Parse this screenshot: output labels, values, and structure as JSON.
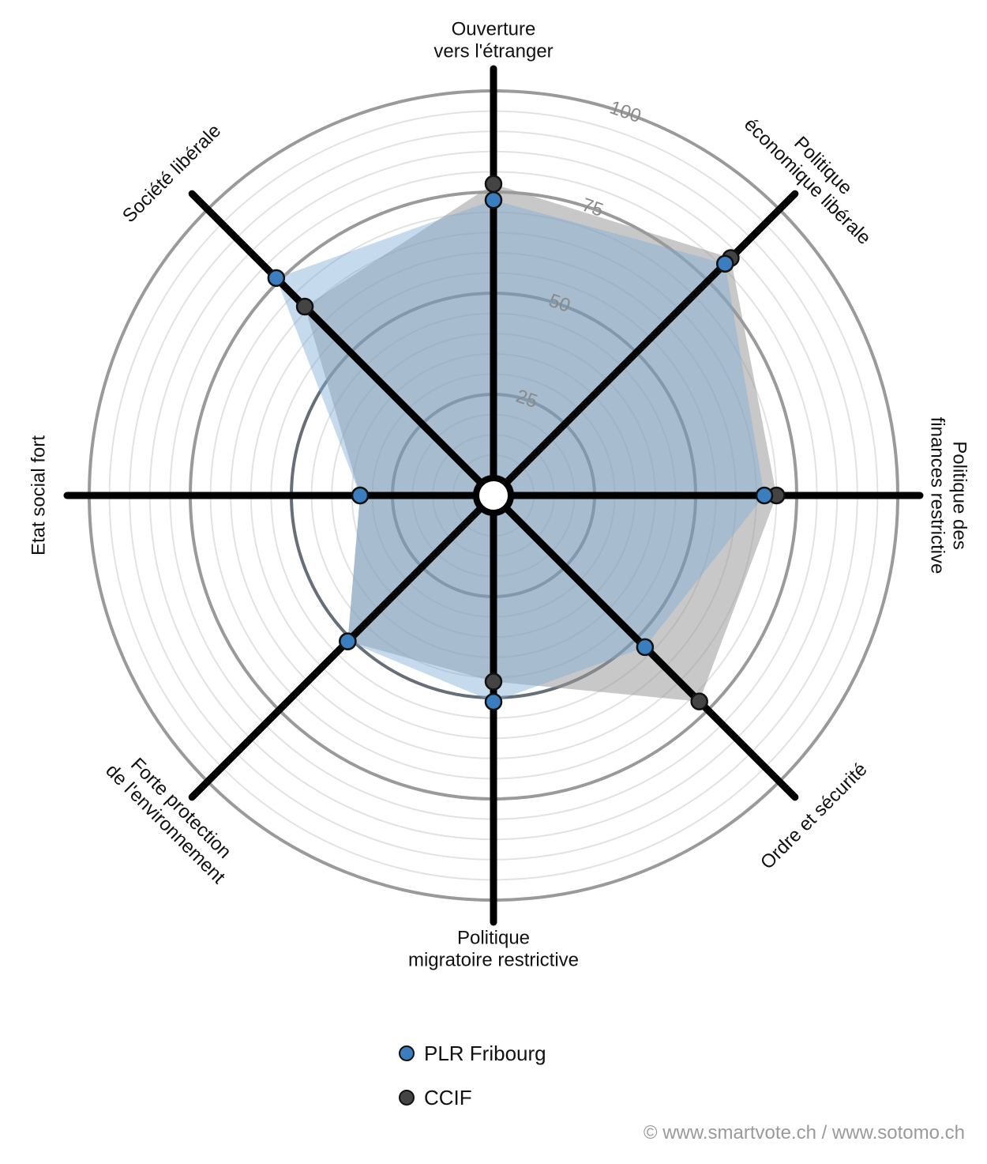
{
  "chart_data": {
    "type": "radar",
    "axes": [
      "Ouverture vers l'étranger",
      "Politique économique libérale",
      "Politique des finances restrictive",
      "Ordre et sécurité",
      "Politique migratoire restrictive",
      "Forte protection de l'environnement",
      "Etat social fort",
      "Société libérale"
    ],
    "axis_label_lines": [
      [
        "Ouverture",
        "vers l'étranger"
      ],
      [
        "Politique",
        "économique libérale"
      ],
      [
        "Politique des",
        "finances restrictive"
      ],
      [
        "Ordre et sécurité"
      ],
      [
        "Politique",
        "migratoire restrictive"
      ],
      [
        "Forte protection",
        "de l'environnement"
      ],
      [
        "Etat social fort"
      ],
      [
        "Société libérale"
      ]
    ],
    "rlim": [
      0,
      100
    ],
    "ticks": [
      25,
      50,
      75,
      100
    ],
    "series": [
      {
        "name": "PLR Fribourg",
        "color": "#3a7ebf",
        "fill": "#7fadd6",
        "values": [
          73,
          81,
          67,
          53,
          51,
          51,
          33,
          76
        ]
      },
      {
        "name": "CCIF",
        "color": "#444444",
        "fill": "#9a9a9a",
        "values": [
          77,
          83,
          70,
          72,
          46,
          51,
          33,
          66
        ]
      }
    ]
  },
  "legend": {
    "items": [
      {
        "label": "PLR Fribourg",
        "color": "#3a7ebf"
      },
      {
        "label": "CCIF",
        "color": "#444444"
      }
    ]
  },
  "footer": "© www.smartvote.ch / www.sotomo.ch"
}
